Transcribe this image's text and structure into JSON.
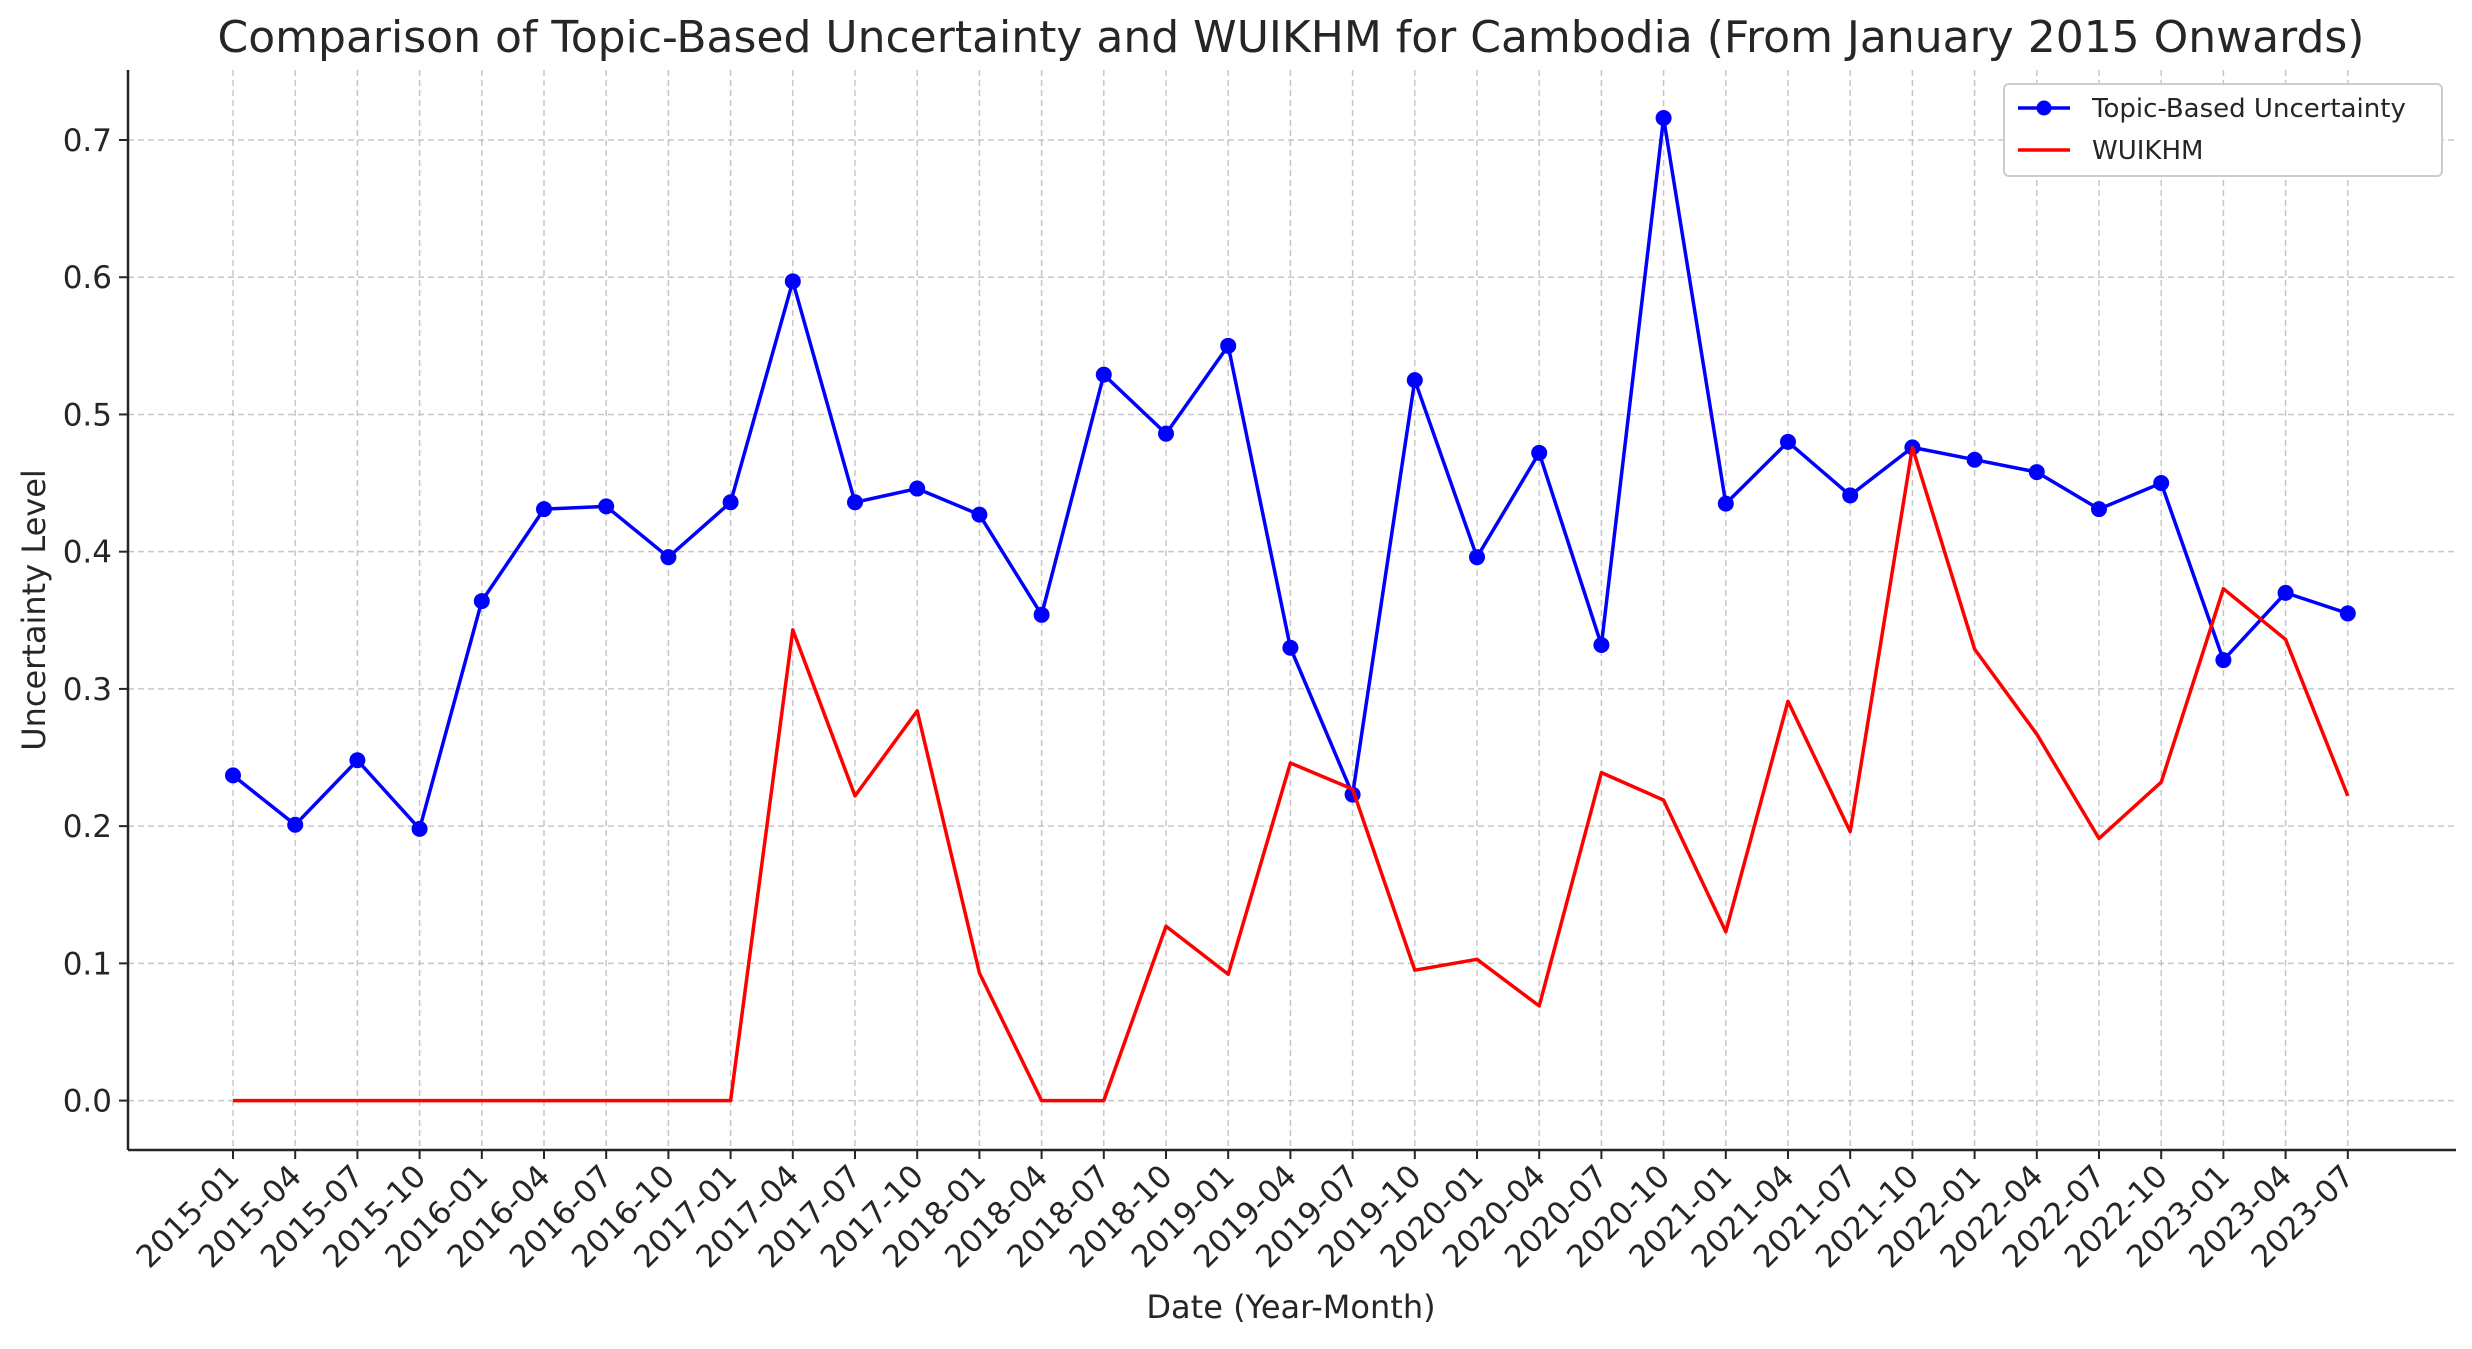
{
  "chart_data": {
    "type": "line",
    "title": "Comparison of Topic-Based Uncertainty and WUIKHM for Cambodia (From January 2015 Onwards)",
    "xlabel": "Date (Year-Month)",
    "ylabel": "Uncertainty Level",
    "categories": [
      "2015-01",
      "2015-04",
      "2015-07",
      "2015-10",
      "2016-01",
      "2016-04",
      "2016-07",
      "2016-10",
      "2017-01",
      "2017-04",
      "2017-07",
      "2017-10",
      "2018-01",
      "2018-04",
      "2018-07",
      "2018-10",
      "2019-01",
      "2019-04",
      "2019-07",
      "2019-10",
      "2020-01",
      "2020-04",
      "2020-07",
      "2020-10",
      "2021-01",
      "2021-04",
      "2021-07",
      "2021-10",
      "2022-01",
      "2022-04",
      "2022-07",
      "2022-10",
      "2023-01",
      "2023-04",
      "2023-07"
    ],
    "y_ticks": [
      "0.0",
      "0.1",
      "0.2",
      "0.3",
      "0.4",
      "0.5",
      "0.6",
      "0.7"
    ],
    "ylim": [
      -0.036,
      0.751
    ],
    "grid": true,
    "legend_position": "top-right",
    "series": [
      {
        "name": "Topic-Based Uncertainty",
        "color": "#0000ff",
        "marker": "circle",
        "values": [
          0.237,
          0.201,
          0.248,
          0.198,
          0.364,
          0.431,
          0.433,
          0.396,
          0.436,
          0.597,
          0.436,
          0.446,
          0.427,
          0.354,
          0.529,
          0.486,
          0.55,
          0.33,
          0.223,
          0.525,
          0.396,
          0.472,
          0.332,
          0.716,
          0.435,
          0.48,
          0.441,
          0.476,
          0.467,
          0.458,
          0.431,
          0.45,
          0.321,
          0.37,
          0.355
        ]
      },
      {
        "name": "WUIKHM",
        "color": "#ff0000",
        "marker": "none",
        "values": [
          0.0,
          0.0,
          0.0,
          0.0,
          0.0,
          0.0,
          0.0,
          0.0,
          0.0,
          0.343,
          0.222,
          0.284,
          0.093,
          0.0,
          0.0,
          0.127,
          0.092,
          0.246,
          0.227,
          0.095,
          0.103,
          0.069,
          0.239,
          0.219,
          0.123,
          0.291,
          0.196,
          0.476,
          0.329,
          0.267,
          0.191,
          0.232,
          0.373,
          0.336,
          0.222
        ]
      }
    ]
  }
}
